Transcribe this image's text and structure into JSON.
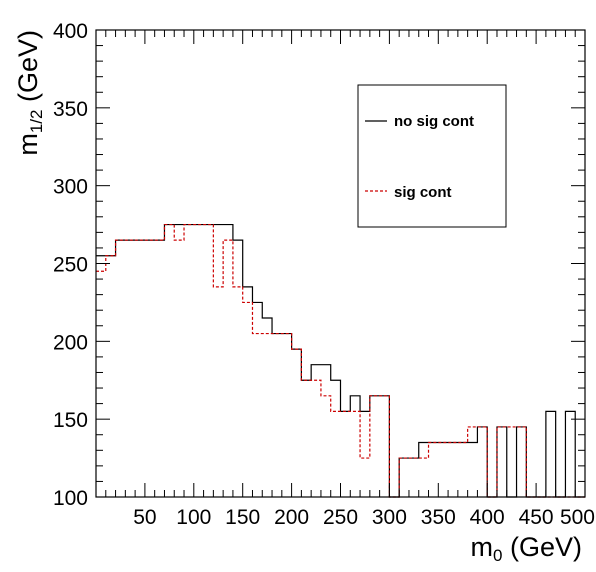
{
  "chart_data": {
    "type": "line",
    "xlabel": "m_0 (GeV)",
    "xlabel_main": "m",
    "xlabel_sub": "0",
    "xlabel_unit": " (GeV)",
    "ylabel": "m_1/2 (GeV)",
    "ylabel_main": "m",
    "ylabel_sub": "1/2",
    "ylabel_unit": " (GeV)",
    "xlim": [
      0,
      500
    ],
    "ylim": [
      100,
      400
    ],
    "x_tick_labels": [
      "50",
      "100",
      "150",
      "200",
      "250",
      "300",
      "350",
      "400",
      "450",
      "500"
    ],
    "y_tick_labels": [
      "100",
      "150",
      "200",
      "250",
      "300",
      "350",
      "400"
    ],
    "grid": false,
    "legend": {
      "placement": "top-right",
      "entries": [
        "no sig cont",
        "sig cont"
      ]
    },
    "series": [
      {
        "name": "no sig cont",
        "color": "#000000",
        "style": "solid",
        "points": [
          [
            0,
            255
          ],
          [
            10,
            255
          ],
          [
            10,
            255
          ],
          [
            20,
            255
          ],
          [
            20,
            265
          ],
          [
            30,
            265
          ],
          [
            30,
            265
          ],
          [
            40,
            265
          ],
          [
            40,
            265
          ],
          [
            50,
            265
          ],
          [
            50,
            265
          ],
          [
            60,
            265
          ],
          [
            60,
            265
          ],
          [
            70,
            265
          ],
          [
            70,
            275
          ],
          [
            80,
            275
          ],
          [
            80,
            275
          ],
          [
            90,
            275
          ],
          [
            90,
            275
          ],
          [
            100,
            275
          ],
          [
            100,
            275
          ],
          [
            110,
            275
          ],
          [
            110,
            275
          ],
          [
            120,
            275
          ],
          [
            120,
            275
          ],
          [
            130,
            275
          ],
          [
            130,
            275
          ],
          [
            140,
            275
          ],
          [
            140,
            265
          ],
          [
            150,
            265
          ],
          [
            150,
            235
          ],
          [
            160,
            235
          ],
          [
            160,
            225
          ],
          [
            170,
            225
          ],
          [
            170,
            215
          ],
          [
            180,
            215
          ],
          [
            180,
            205
          ],
          [
            190,
            205
          ],
          [
            190,
            205
          ],
          [
            200,
            205
          ],
          [
            200,
            195
          ],
          [
            210,
            195
          ],
          [
            210,
            175
          ],
          [
            220,
            175
          ],
          [
            220,
            185
          ],
          [
            230,
            185
          ],
          [
            230,
            185
          ],
          [
            240,
            185
          ],
          [
            240,
            175
          ],
          [
            250,
            175
          ],
          [
            250,
            155
          ],
          [
            260,
            155
          ],
          [
            260,
            165
          ],
          [
            270,
            165
          ],
          [
            270,
            155
          ],
          [
            280,
            155
          ],
          [
            280,
            165
          ],
          [
            290,
            165
          ],
          [
            290,
            165
          ],
          [
            300,
            165
          ],
          [
            300,
            100
          ],
          [
            310,
            100
          ],
          [
            310,
            125
          ],
          [
            320,
            125
          ],
          [
            320,
            125
          ],
          [
            330,
            125
          ],
          [
            330,
            135
          ],
          [
            340,
            135
          ],
          [
            340,
            135
          ],
          [
            350,
            135
          ],
          [
            350,
            135
          ],
          [
            360,
            135
          ],
          [
            360,
            135
          ],
          [
            370,
            135
          ],
          [
            370,
            135
          ],
          [
            380,
            135
          ],
          [
            380,
            135
          ],
          [
            390,
            135
          ],
          [
            390,
            145
          ],
          [
            400,
            145
          ],
          [
            400,
            100
          ],
          [
            410,
            100
          ],
          [
            410,
            145
          ],
          [
            420,
            145
          ],
          [
            420,
            100
          ],
          [
            430,
            100
          ],
          [
            430,
            145
          ],
          [
            440,
            145
          ],
          [
            440,
            100
          ],
          [
            450,
            100
          ],
          [
            450,
            100
          ],
          [
            460,
            100
          ],
          [
            460,
            155
          ],
          [
            470,
            155
          ],
          [
            470,
            100
          ],
          [
            480,
            100
          ],
          [
            480,
            155
          ],
          [
            490,
            155
          ],
          [
            490,
            100
          ],
          [
            500,
            100
          ]
        ]
      },
      {
        "name": "sig cont",
        "color": "#cc0000",
        "style": "dashed",
        "points": [
          [
            0,
            245
          ],
          [
            10,
            245
          ],
          [
            10,
            255
          ],
          [
            20,
            255
          ],
          [
            20,
            265
          ],
          [
            30,
            265
          ],
          [
            30,
            265
          ],
          [
            40,
            265
          ],
          [
            40,
            265
          ],
          [
            50,
            265
          ],
          [
            50,
            265
          ],
          [
            60,
            265
          ],
          [
            60,
            265
          ],
          [
            70,
            265
          ],
          [
            70,
            275
          ],
          [
            80,
            275
          ],
          [
            80,
            265
          ],
          [
            90,
            265
          ],
          [
            90,
            275
          ],
          [
            100,
            275
          ],
          [
            100,
            275
          ],
          [
            110,
            275
          ],
          [
            110,
            275
          ],
          [
            120,
            275
          ],
          [
            120,
            235
          ],
          [
            130,
            235
          ],
          [
            130,
            265
          ],
          [
            140,
            265
          ],
          [
            140,
            235
          ],
          [
            150,
            235
          ],
          [
            150,
            225
          ],
          [
            160,
            225
          ],
          [
            160,
            205
          ],
          [
            170,
            205
          ],
          [
            170,
            205
          ],
          [
            180,
            205
          ],
          [
            180,
            205
          ],
          [
            190,
            205
          ],
          [
            190,
            205
          ],
          [
            200,
            205
          ],
          [
            200,
            195
          ],
          [
            210,
            195
          ],
          [
            210,
            175
          ],
          [
            220,
            175
          ],
          [
            220,
            175
          ],
          [
            230,
            175
          ],
          [
            230,
            165
          ],
          [
            240,
            165
          ],
          [
            240,
            155
          ],
          [
            250,
            155
          ],
          [
            250,
            155
          ],
          [
            260,
            155
          ],
          [
            260,
            155
          ],
          [
            270,
            155
          ],
          [
            270,
            125
          ],
          [
            280,
            125
          ],
          [
            280,
            165
          ],
          [
            290,
            165
          ],
          [
            290,
            165
          ],
          [
            300,
            165
          ],
          [
            300,
            100
          ],
          [
            310,
            100
          ],
          [
            310,
            125
          ],
          [
            320,
            125
          ],
          [
            320,
            125
          ],
          [
            330,
            125
          ],
          [
            330,
            125
          ],
          [
            340,
            125
          ],
          [
            340,
            135
          ],
          [
            350,
            135
          ],
          [
            350,
            135
          ],
          [
            360,
            135
          ],
          [
            360,
            135
          ],
          [
            370,
            135
          ],
          [
            370,
            135
          ],
          [
            380,
            135
          ],
          [
            380,
            145
          ],
          [
            390,
            145
          ],
          [
            390,
            145
          ],
          [
            400,
            145
          ],
          [
            400,
            100
          ],
          [
            410,
            100
          ],
          [
            410,
            145
          ],
          [
            420,
            145
          ],
          [
            420,
            145
          ],
          [
            430,
            145
          ],
          [
            430,
            145
          ],
          [
            440,
            145
          ],
          [
            440,
            100
          ],
          [
            450,
            100
          ],
          [
            450,
            100
          ],
          [
            460,
            100
          ],
          [
            460,
            100
          ],
          [
            470,
            100
          ],
          [
            470,
            100
          ],
          [
            480,
            100
          ],
          [
            480,
            100
          ],
          [
            490,
            100
          ],
          [
            490,
            100
          ],
          [
            500,
            100
          ]
        ]
      }
    ]
  }
}
